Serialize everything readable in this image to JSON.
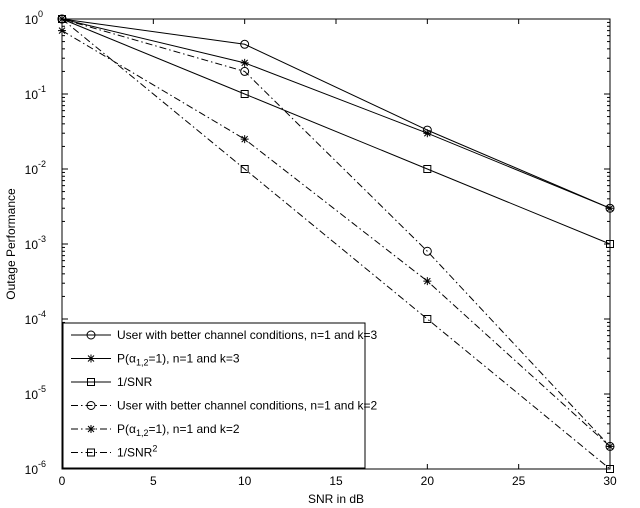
{
  "chart_data": {
    "type": "line",
    "title": "",
    "xlabel": "SNR in dB",
    "ylabel": "Outage Performance",
    "x_scale": "linear",
    "y_scale": "log",
    "xlim": [
      0,
      30
    ],
    "ylim": [
      1e-06,
      1
    ],
    "grid": false,
    "legend_position": "bottom-left",
    "x_ticks": [
      0,
      5,
      10,
      15,
      20,
      25,
      30
    ],
    "x_tick_labels": [
      "0",
      "5",
      "10",
      "15",
      "20",
      "25",
      "30"
    ],
    "y_ticks": [
      1e-06,
      1e-05,
      0.0001,
      0.001,
      0.01,
      0.1,
      1
    ],
    "y_tick_labels": [
      {
        "base": "10",
        "exp": "-6"
      },
      {
        "base": "10",
        "exp": "-5"
      },
      {
        "base": "10",
        "exp": "-4"
      },
      {
        "base": "10",
        "exp": "-3"
      },
      {
        "base": "10",
        "exp": "-2"
      },
      {
        "base": "10",
        "exp": "-1"
      },
      {
        "base": "10",
        "exp": "0"
      }
    ],
    "x": [
      0,
      10,
      20,
      30
    ],
    "series": [
      {
        "name": "User with better channel conditions, n=1 and k=3",
        "legend": [
          {
            "text": "User with better channel conditions, n=1 and k=3"
          }
        ],
        "values": [
          1.0,
          0.46,
          0.033,
          0.003
        ],
        "line_style": "solid",
        "marker": "circle",
        "color": "#000000"
      },
      {
        "name": "P(α1,2=1), n=1 and k=3",
        "legend": [
          {
            "text": "P(α"
          },
          {
            "text": "1,2",
            "sub": true
          },
          {
            "text": "=1), n=1 and k=3"
          }
        ],
        "values": [
          1.0,
          0.26,
          0.03,
          0.003
        ],
        "line_style": "solid",
        "marker": "star",
        "color": "#000000"
      },
      {
        "name": "1/SNR",
        "legend": [
          {
            "text": "1/SNR"
          }
        ],
        "values": [
          1.0,
          0.1,
          0.01,
          0.001
        ],
        "line_style": "solid",
        "marker": "square",
        "color": "#000000"
      },
      {
        "name": "User with better channel conditions, n=1 and k=2",
        "legend": [
          {
            "text": "User with better channel conditions, n=1 and k=2"
          }
        ],
        "values": [
          1.0,
          0.2,
          0.0008,
          2e-06
        ],
        "line_style": "dashdot",
        "marker": "circle",
        "color": "#000000"
      },
      {
        "name": "P(α1,2=1), n=1 and k=2",
        "legend": [
          {
            "text": "P(α"
          },
          {
            "text": "1,2",
            "sub": true
          },
          {
            "text": "=1), n=1 and k=2"
          }
        ],
        "values": [
          0.7,
          0.025,
          0.00032,
          2e-06
        ],
        "line_style": "dashdot",
        "marker": "star",
        "color": "#000000"
      },
      {
        "name": "1/SNR2",
        "legend": [
          {
            "text": "1/SNR"
          },
          {
            "text": "2",
            "sup": true
          }
        ],
        "values": [
          1.0,
          0.01,
          0.0001,
          1e-06
        ],
        "line_style": "dashdot",
        "marker": "square",
        "color": "#000000"
      }
    ]
  }
}
